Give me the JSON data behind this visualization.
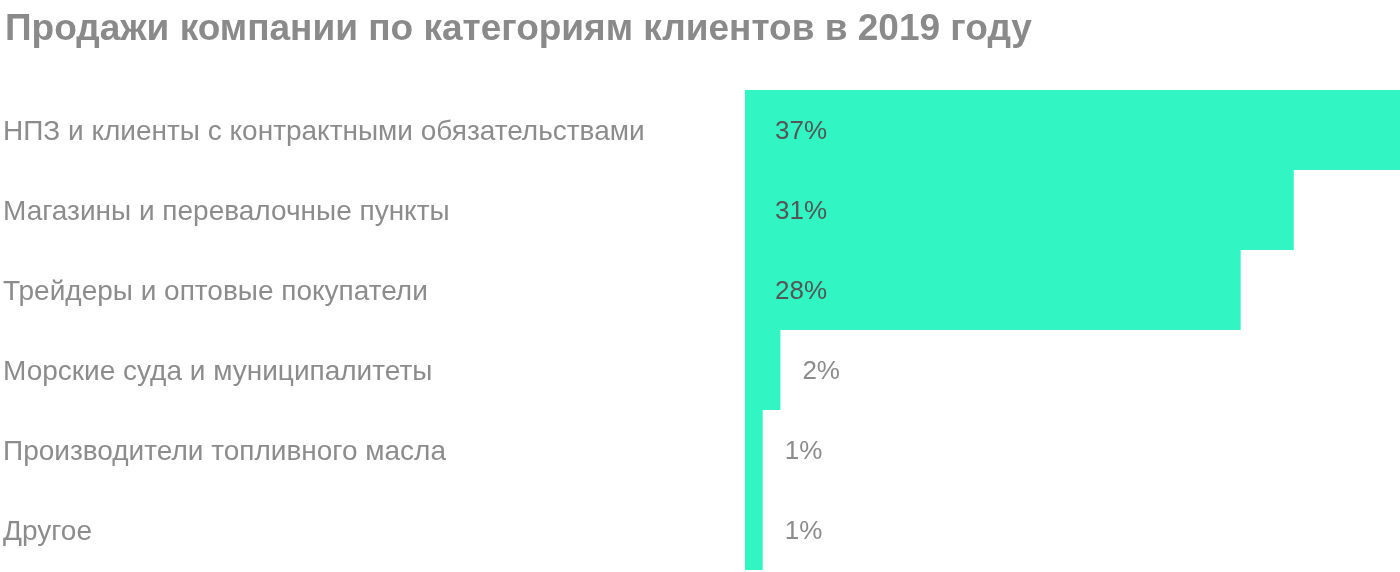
{
  "chart_data": {
    "type": "bar",
    "orientation": "horizontal",
    "title": "Продажи компании по категориям клиентов в 2019 году",
    "categories": [
      "НПЗ и клиенты с контрактными обязательствами",
      "Магазины и перевалочные пункты",
      "Трейдеры и оптовые покупатели",
      "Морские суда и муниципалитеты",
      "Производители топливного масла",
      "Другое"
    ],
    "values": [
      37,
      31,
      28,
      2,
      1,
      1
    ],
    "value_labels": [
      "37%",
      "31%",
      "28%",
      "2%",
      "1%",
      "1%"
    ],
    "color": "#32f5c4"
  }
}
